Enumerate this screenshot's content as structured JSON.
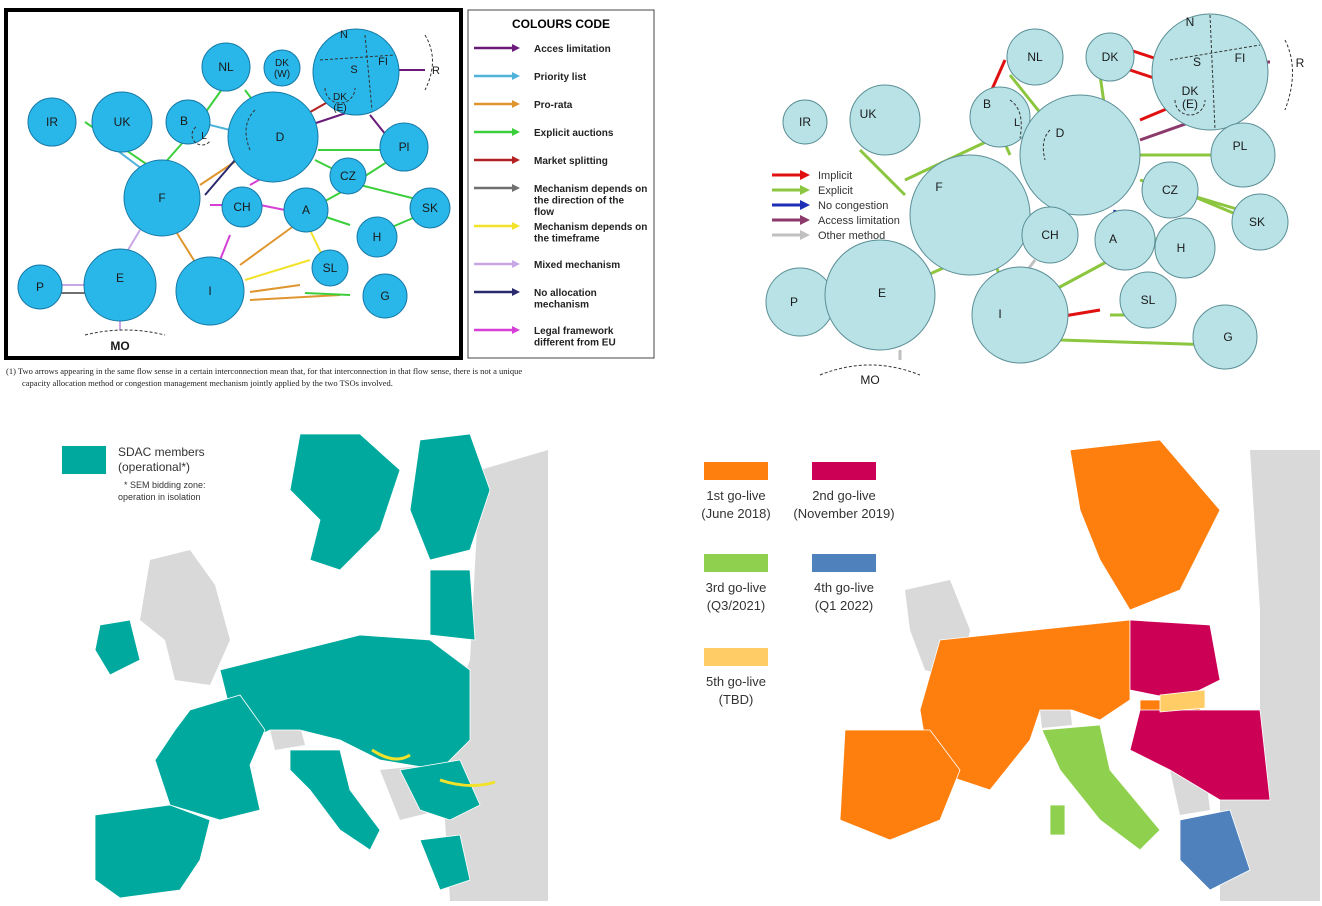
{
  "panel_a": {
    "nodes": [
      "IR",
      "UK",
      "NL",
      "DK\n(W)",
      "B",
      "L",
      "D",
      "N",
      "S",
      "FI",
      "DK\n(E)",
      "R",
      "F",
      "CH",
      "A",
      "CZ",
      "Pl",
      "SK",
      "H",
      "SL",
      "I",
      "G",
      "E",
      "P",
      "MO"
    ],
    "legend_title": "COLOURS CODE",
    "legend": [
      {
        "label": "Acces limitation",
        "color": "#6a1b7a"
      },
      {
        "label": "Priority list",
        "color": "#4fb3d9"
      },
      {
        "label": "Pro-rata",
        "color": "#e0962e"
      },
      {
        "label": "Explicit auctions",
        "color": "#3ccf3c"
      },
      {
        "label": "Market splitting",
        "color": "#b22222"
      },
      {
        "label": "Mechanism depends on the direction of the flow",
        "color": "#707070"
      },
      {
        "label": "Mechanism depends on the timeframe",
        "color": "#f2e22a"
      },
      {
        "label": "Mixed mechanism",
        "color": "#c9a6e6"
      },
      {
        "label": "No allocation mechanism",
        "color": "#2a2a6e"
      },
      {
        "label": "Legal framework different from EU",
        "color": "#d63fd6"
      }
    ],
    "footnote_line1": "(1) Two arrows appearing in the same flow sense in a certain interconnection mean that, for that interconnection in that flow sense, there is not a unique",
    "footnote_line2": "capacity allocation method or congestion management mechanism jointly applied by the two TSOs involved."
  },
  "panel_b": {
    "nodes": [
      "NL",
      "DK",
      "N",
      "S",
      "FI",
      "DK\n(E)",
      "R",
      "IR",
      "UK",
      "B",
      "L",
      "D",
      "PL",
      "F",
      "CZ",
      "SK",
      "CH",
      "A",
      "H",
      "P",
      "E",
      "SL",
      "I",
      "G",
      "MO"
    ],
    "legend": [
      {
        "label": "Implicit",
        "color": "#e01010"
      },
      {
        "label": "Explicit",
        "color": "#8cc63f"
      },
      {
        "label": "No congestion",
        "color": "#1f2fb5"
      },
      {
        "label": "Access limitation",
        "color": "#8b3a6b"
      },
      {
        "label": "Other method",
        "color": "#c0c0c0"
      }
    ]
  },
  "panel_c": {
    "legend_title_line1": "SDAC members",
    "legend_title_line2": "(operational*)",
    "note_line1": "* SEM bidding zone:",
    "note_line2": "operation in isolation",
    "member_color": "#00a99d"
  },
  "panel_d": {
    "legend": [
      {
        "label_line1": "1st go-live",
        "label_line2": "(June 2018)",
        "color": "#ff7f0e"
      },
      {
        "label_line1": "2nd go-live",
        "label_line2": "(November 2019)",
        "color": "#cc0055"
      },
      {
        "label_line1": "3rd go-live",
        "label_line2": "(Q3/2021)",
        "color": "#8fd14f"
      },
      {
        "label_line1": "4th go-live",
        "label_line2": "(Q1 2022)",
        "color": "#4f81bd"
      },
      {
        "label_line1": "5th go-live",
        "label_line2": "(TBD)",
        "color": "#ffcc66"
      }
    ]
  }
}
